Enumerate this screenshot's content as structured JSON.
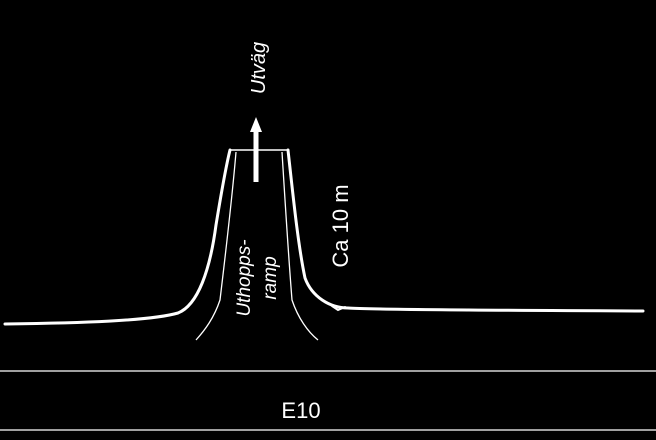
{
  "colors": {
    "background": "#000000",
    "foreground": "#ffffff"
  },
  "labels": {
    "exit_road": "Utväg",
    "ramp_line1": "Uthopps-",
    "ramp_line2": "ramp",
    "distance": "Ca 10 m",
    "road": "E10"
  }
}
